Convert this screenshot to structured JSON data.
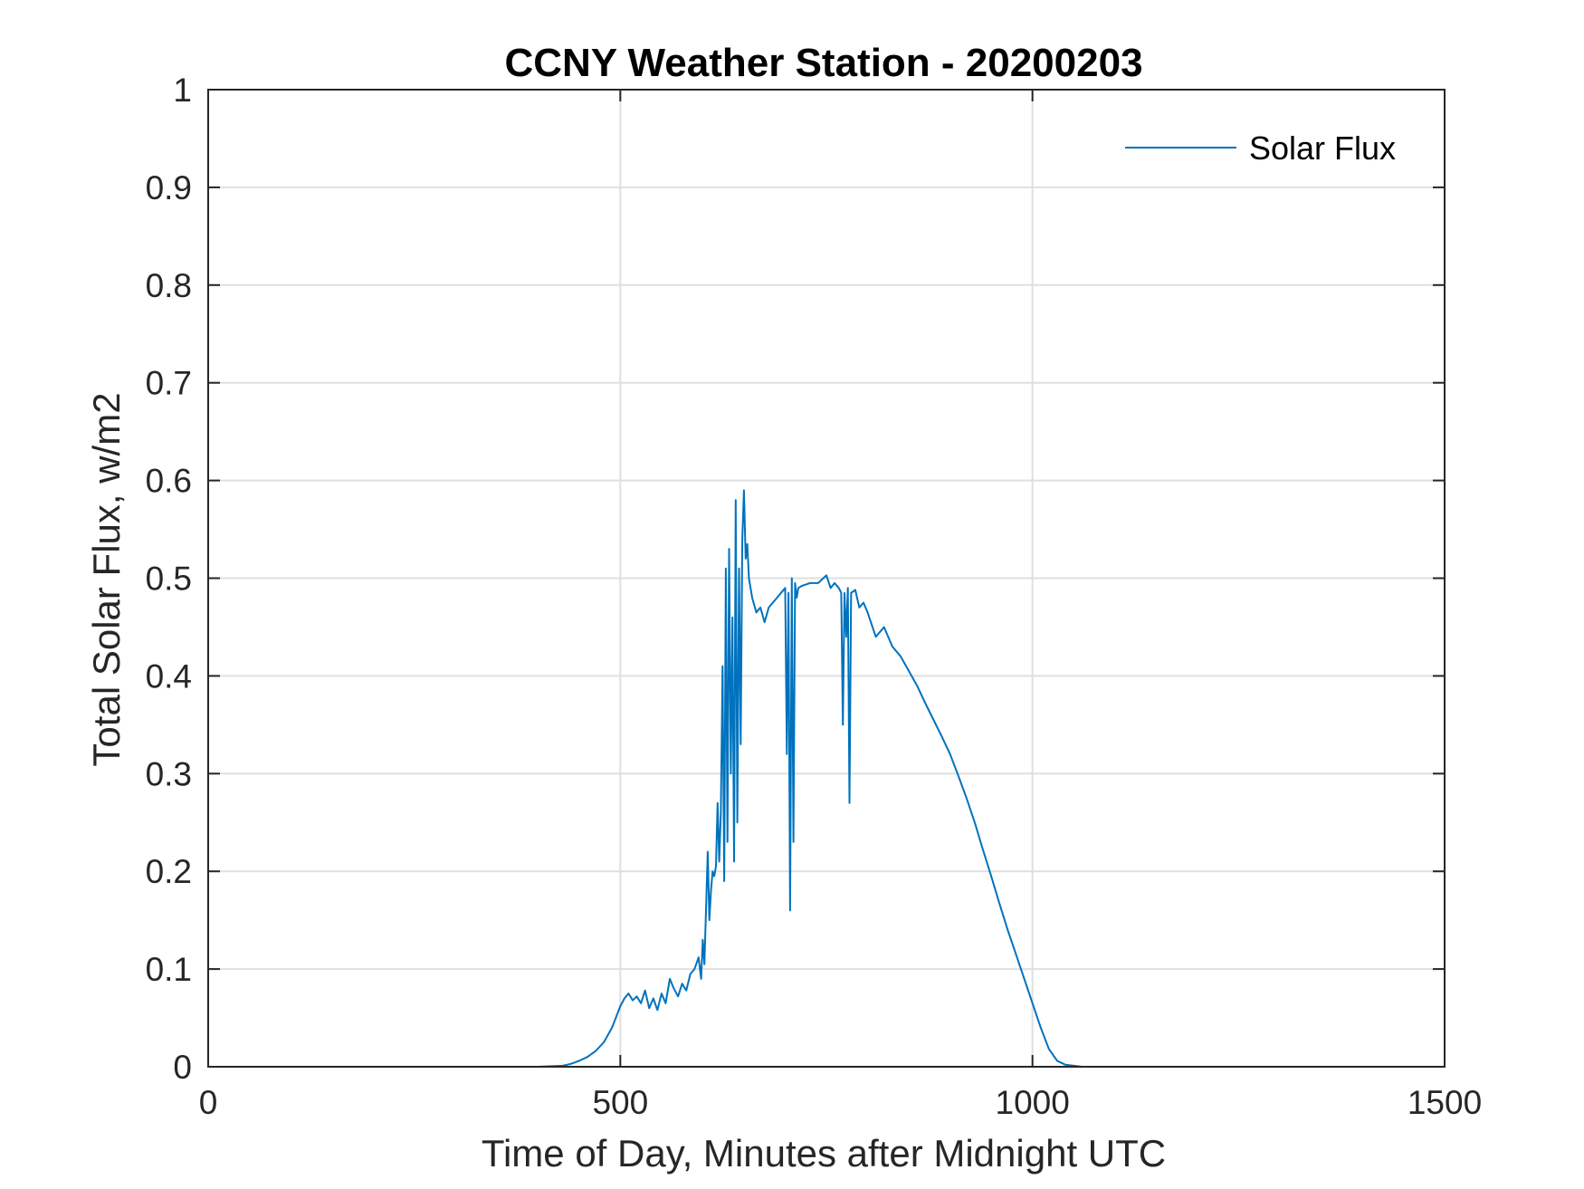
{
  "chart_data": {
    "type": "line",
    "title": "CCNY Weather Station - 20200203",
    "xlabel": "Time of Day, Minutes after Midnight UTC",
    "ylabel": "Total Solar Flux, w/m2",
    "xlim": [
      0,
      1500
    ],
    "ylim": [
      0,
      1
    ],
    "xticks": [
      0,
      500,
      1000,
      1500
    ],
    "xtick_labels": [
      "0",
      "500",
      "1000",
      "1500"
    ],
    "yticks": [
      0,
      0.1,
      0.2,
      0.3,
      0.4,
      0.5,
      0.6,
      0.7,
      0.8,
      0.9,
      1
    ],
    "ytick_labels": [
      "0",
      "0.1",
      "0.2",
      "0.3",
      "0.4",
      "0.5",
      "0.6",
      "0.7",
      "0.8",
      "0.9",
      "1"
    ],
    "grid": true,
    "legend_position": "top-right",
    "series": [
      {
        "name": "Solar Flux",
        "color": "#0072BD",
        "x": [
          0,
          100,
          200,
          300,
          400,
          430,
          440,
          450,
          460,
          470,
          480,
          490,
          500,
          505,
          510,
          515,
          520,
          525,
          530,
          535,
          540,
          545,
          550,
          555,
          560,
          565,
          570,
          575,
          580,
          585,
          590,
          595,
          598,
          600,
          602,
          604,
          606,
          608,
          610,
          612,
          614,
          616,
          618,
          620,
          622,
          624,
          626,
          628,
          630,
          632,
          634,
          636,
          638,
          640,
          642,
          644,
          646,
          648,
          650,
          652,
          654,
          656,
          660,
          665,
          670,
          675,
          680,
          685,
          690,
          695,
          700,
          702,
          704,
          706,
          708,
          710,
          712,
          714,
          716,
          720,
          730,
          740,
          750,
          755,
          760,
          765,
          768,
          770,
          772,
          774,
          776,
          778,
          780,
          785,
          790,
          795,
          800,
          810,
          820,
          830,
          840,
          850,
          860,
          870,
          880,
          890,
          900,
          910,
          920,
          930,
          940,
          950,
          960,
          970,
          980,
          990,
          1000,
          1010,
          1020,
          1030,
          1040,
          1050,
          1060,
          1100,
          1200,
          1300,
          1400,
          1445
        ],
        "y": [
          0,
          0,
          0,
          0,
          0,
          0.001,
          0.003,
          0.006,
          0.01,
          0.016,
          0.025,
          0.04,
          0.062,
          0.07,
          0.075,
          0.068,
          0.072,
          0.065,
          0.078,
          0.06,
          0.07,
          0.058,
          0.075,
          0.065,
          0.09,
          0.08,
          0.072,
          0.085,
          0.078,
          0.095,
          0.1,
          0.112,
          0.09,
          0.13,
          0.105,
          0.16,
          0.22,
          0.15,
          0.18,
          0.2,
          0.195,
          0.205,
          0.27,
          0.21,
          0.26,
          0.41,
          0.19,
          0.51,
          0.23,
          0.53,
          0.3,
          0.46,
          0.21,
          0.58,
          0.25,
          0.51,
          0.33,
          0.54,
          0.59,
          0.52,
          0.535,
          0.5,
          0.48,
          0.465,
          0.47,
          0.455,
          0.47,
          0.475,
          0.48,
          0.485,
          0.49,
          0.32,
          0.485,
          0.16,
          0.5,
          0.23,
          0.495,
          0.48,
          0.49,
          0.492,
          0.495,
          0.495,
          0.503,
          0.49,
          0.495,
          0.49,
          0.485,
          0.35,
          0.485,
          0.44,
          0.49,
          0.27,
          0.485,
          0.488,
          0.47,
          0.475,
          0.465,
          0.44,
          0.45,
          0.43,
          0.42,
          0.405,
          0.39,
          0.372,
          0.355,
          0.338,
          0.32,
          0.298,
          0.275,
          0.25,
          0.222,
          0.195,
          0.167,
          0.14,
          0.115,
          0.09,
          0.065,
          0.04,
          0.018,
          0.006,
          0.002,
          0.001,
          0,
          0,
          0,
          0,
          0,
          0
        ]
      }
    ]
  }
}
